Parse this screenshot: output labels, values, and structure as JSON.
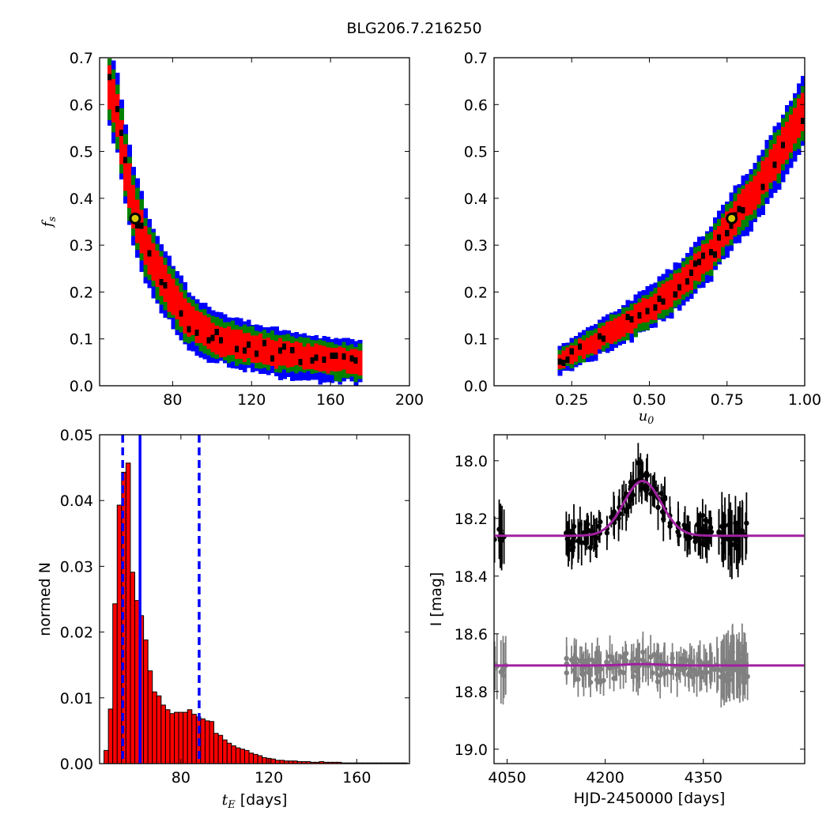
{
  "figure": {
    "title": "BLG206.7.216250"
  },
  "chart_data": [
    {
      "type": "heatmap",
      "panel": "top-left",
      "xlabel": "",
      "ylabel": "f_s",
      "xlim": [
        43,
        200
      ],
      "ylim": [
        0,
        0.7
      ],
      "xticks": [
        80,
        120,
        160,
        200
      ],
      "yticks": [
        0.0,
        0.1,
        0.2,
        0.3,
        0.4,
        0.5,
        0.6,
        0.7
      ],
      "colors": {
        "outer": "#0000ff",
        "mid": "#008000",
        "inner": "#ff0000",
        "core": "#000000"
      },
      "ridge": [
        [
          47,
          0.655
        ],
        [
          52,
          0.58
        ],
        [
          56,
          0.47
        ],
        [
          60,
          0.385
        ],
        [
          66,
          0.3
        ],
        [
          75,
          0.225
        ],
        [
          88,
          0.14
        ],
        [
          100,
          0.105
        ],
        [
          120,
          0.082
        ],
        [
          145,
          0.062
        ],
        [
          175,
          0.05
        ]
      ],
      "best_fit": {
        "x": 61,
        "y": 0.357
      }
    },
    {
      "type": "heatmap",
      "panel": "top-right",
      "xlabel": "u_0",
      "ylabel": "",
      "xlim": [
        0.0,
        1.0
      ],
      "ylim": [
        0,
        0.7
      ],
      "xticks": [
        "0.25",
        "0.50",
        "0.75",
        "1.00"
      ],
      "yticks": [
        0.0,
        0.1,
        0.2,
        0.3,
        0.4,
        0.5,
        0.6,
        0.7
      ],
      "colors": {
        "outer": "#0000ff",
        "mid": "#008000",
        "inner": "#ff0000",
        "core": "#000000"
      },
      "ridge": [
        [
          0.2,
          0.05
        ],
        [
          0.3,
          0.085
        ],
        [
          0.4,
          0.125
        ],
        [
          0.5,
          0.165
        ],
        [
          0.6,
          0.215
        ],
        [
          0.7,
          0.285
        ],
        [
          0.77,
          0.357
        ],
        [
          0.85,
          0.42
        ],
        [
          0.92,
          0.5
        ],
        [
          1.0,
          0.59
        ]
      ],
      "best_fit": {
        "x": 0.765,
        "y": 0.357
      }
    },
    {
      "type": "bar",
      "panel": "bottom-left",
      "xlabel": "t_E [days]",
      "ylabel": "normed N",
      "xlim": [
        43,
        184
      ],
      "ylim": [
        0,
        0.05
      ],
      "xticks": [
        80,
        120,
        160
      ],
      "yticks": [
        "0.00",
        "0.01",
        "0.02",
        "0.03",
        "0.04",
        "0.05"
      ],
      "bin_width": 2,
      "bins_start": 45,
      "values": [
        0.002,
        0.0083,
        0.0243,
        0.0393,
        0.0443,
        0.0457,
        0.0291,
        0.0248,
        0.0225,
        0.0188,
        0.0141,
        0.0109,
        0.0103,
        0.0089,
        0.0082,
        0.0076,
        0.0078,
        0.0078,
        0.0078,
        0.0082,
        0.0075,
        0.0071,
        0.0068,
        0.0065,
        0.0064,
        0.0046,
        0.0043,
        0.0036,
        0.0031,
        0.0027,
        0.0024,
        0.0022,
        0.002,
        0.0016,
        0.0014,
        0.0012,
        0.0009,
        0.0008,
        0.0007,
        0.0005,
        0.0005,
        0.0004,
        0.0004,
        0.0004,
        0.0003,
        0.0003,
        0.0003,
        0.0002,
        0.0002,
        0.0003,
        0.0002,
        0.0002,
        0.0002,
        0.0002,
        0.0001,
        0.0001,
        0.0001,
        0.0001,
        0.0001,
        0.0001,
        0.0001,
        0.0001,
        0.0001,
        0.0001,
        0.0001,
        0.0001,
        0.0001,
        0.0001,
        0.0001,
        0.0001
      ],
      "bar_color": "#ff0000",
      "vlines": {
        "median": 61.4,
        "lower": 53.5,
        "upper": 88.3,
        "color": "#0000ff"
      }
    },
    {
      "type": "scatter",
      "panel": "bottom-right",
      "xlabel": "HJD-2450000 [days]",
      "ylabel": "I [mag]",
      "xlim": [
        4030,
        4505
      ],
      "ylim": [
        19.05,
        17.91
      ],
      "xticks": [
        4050,
        4200,
        4350
      ],
      "yticks": [
        "18.0",
        "18.2",
        "18.4",
        "18.6",
        "18.8",
        "19.0"
      ],
      "series": [
        {
          "color": "#000000",
          "model_color": "#a020a0",
          "baseline": 18.26,
          "peak_mag": 18.07,
          "peak_time": 4257,
          "width": 40,
          "x_range": [
            4030,
            4420
          ],
          "offset": 0
        },
        {
          "color": "#808080",
          "model_color": "#a020a0",
          "baseline": 18.71,
          "peak_mag": 18.705,
          "peak_time": 4257,
          "width": 40,
          "x_range": [
            4030,
            4420
          ],
          "offset": 0.45
        }
      ]
    }
  ]
}
